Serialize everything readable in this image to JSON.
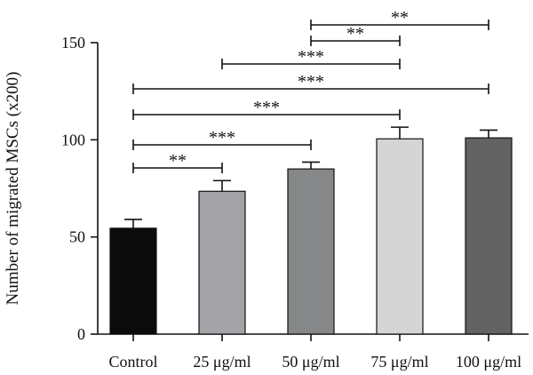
{
  "chart_data": {
    "type": "bar",
    "categories": [
      "Control",
      "25 μg/ml",
      "50 μg/ml",
      "75 μg/ml",
      "100 μg/ml"
    ],
    "values": [
      54.5,
      73.5,
      85.0,
      100.5,
      101.0
    ],
    "errors": [
      4.5,
      5.5,
      3.5,
      6.0,
      4.0
    ],
    "bar_colors": [
      "#0b0b0b",
      "#a3a3a8",
      "#868788",
      "#d5d5d5",
      "#626263"
    ],
    "title": "",
    "xlabel": "",
    "ylabel": "Number of migrated MSCs (x200)",
    "ylim": [
      0,
      150
    ],
    "yticks": [
      0,
      50,
      100,
      150
    ],
    "grid": false,
    "significance": [
      {
        "from": 0,
        "to": 1,
        "label": "**"
      },
      {
        "from": 0,
        "to": 2,
        "label": "***"
      },
      {
        "from": 0,
        "to": 3,
        "label": "***"
      },
      {
        "from": 0,
        "to": 4,
        "label": "***"
      },
      {
        "from": 1,
        "to": 3,
        "label": "***"
      },
      {
        "from": 2,
        "to": 3,
        "label": "**"
      },
      {
        "from": 2,
        "to": 4,
        "label": "**"
      }
    ]
  }
}
